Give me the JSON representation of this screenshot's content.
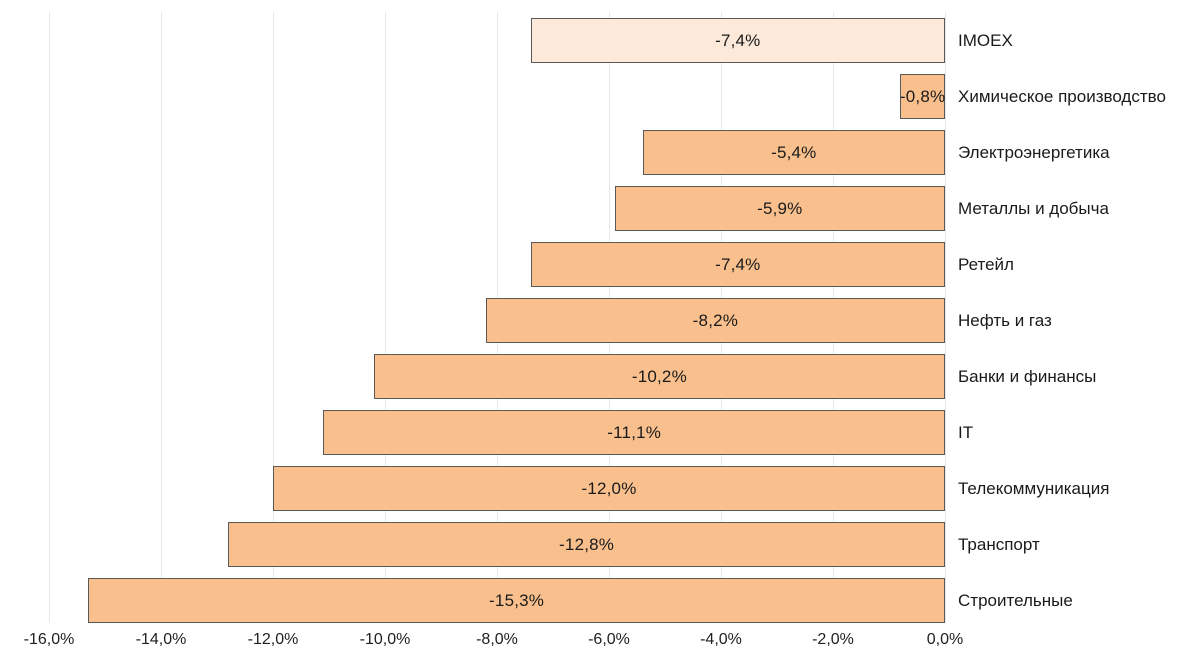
{
  "chart_data": {
    "type": "bar",
    "orientation": "horizontal",
    "title": "",
    "xlabel": "",
    "ylabel": "",
    "categories": [
      "IMOEX",
      "Химическое производство",
      "Электроэнергетика",
      "Металлы и добыча",
      "Ретейл",
      "Нефть и газ",
      "Банки и финансы",
      "IT",
      "Телекоммуникация",
      "Транспорт",
      "Строительные"
    ],
    "values": [
      -7.4,
      -0.8,
      -5.4,
      -5.9,
      -7.4,
      -8.2,
      -10.2,
      -11.1,
      -12.0,
      -12.8,
      -15.3
    ],
    "value_labels": [
      "-7,4%",
      "-0,8%",
      "-5,4%",
      "-5,9%",
      "-7,4%",
      "-8,2%",
      "-10,2%",
      "-11,1%",
      "-12,0%",
      "-12,8%",
      "-15,3%"
    ],
    "xlim": [
      -16,
      0
    ],
    "x_ticks": [
      "-16,0%",
      "-14,0%",
      "-12,0%",
      "-10,0%",
      "-8,0%",
      "-6,0%",
      "-4,0%",
      "-2,0%",
      "0,0%"
    ],
    "grid": true,
    "legend": false,
    "colors": {
      "bar_fill": "#f9c08d",
      "highlight_fill": "#fce9da",
      "bar_border": "#595959",
      "gridline": "#e7e7e7",
      "text": "#1a1a1a"
    },
    "highlight_index": 0
  }
}
